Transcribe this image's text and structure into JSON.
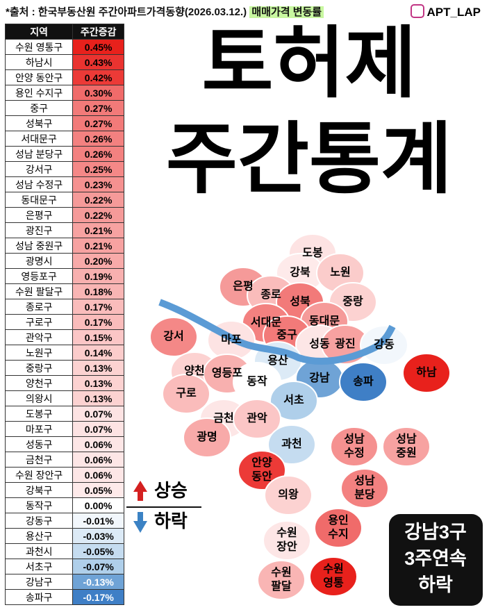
{
  "header": {
    "source": "*출처 : 한국부동산원 주간아파트가격동향(2026.03.12.)",
    "metric": "매매가격 변동률",
    "account": "APT_LAP"
  },
  "table": {
    "columns": [
      "지역",
      "주간증감"
    ],
    "rows": [
      {
        "region": "수원 영통구",
        "change": "0.45%",
        "color": "#e8211c"
      },
      {
        "region": "하남시",
        "change": "0.43%",
        "color": "#ea3330"
      },
      {
        "region": "안양 동안구",
        "change": "0.42%",
        "color": "#ec3a37"
      },
      {
        "region": "용인 수지구",
        "change": "0.30%",
        "color": "#f06b6a"
      },
      {
        "region": "중구",
        "change": "0.27%",
        "color": "#f27a79"
      },
      {
        "region": "성북구",
        "change": "0.27%",
        "color": "#f27a79"
      },
      {
        "region": "서대문구",
        "change": "0.26%",
        "color": "#f38180"
      },
      {
        "region": "성남 분당구",
        "change": "0.26%",
        "color": "#f38180"
      },
      {
        "region": "강서구",
        "change": "0.25%",
        "color": "#f48887"
      },
      {
        "region": "성남 수정구",
        "change": "0.23%",
        "color": "#f59190"
      },
      {
        "region": "동대문구",
        "change": "0.22%",
        "color": "#f59a99"
      },
      {
        "region": "은평구",
        "change": "0.22%",
        "color": "#f59a99"
      },
      {
        "region": "광진구",
        "change": "0.21%",
        "color": "#f7a2a1"
      },
      {
        "region": "성남 중원구",
        "change": "0.21%",
        "color": "#f7a2a1"
      },
      {
        "region": "광명시",
        "change": "0.20%",
        "color": "#f8aaa9"
      },
      {
        "region": "영등포구",
        "change": "0.19%",
        "color": "#f8b0af"
      },
      {
        "region": "수원 팔달구",
        "change": "0.18%",
        "color": "#f9b5b4"
      },
      {
        "region": "종로구",
        "change": "0.17%",
        "color": "#fabcbb"
      },
      {
        "region": "구로구",
        "change": "0.17%",
        "color": "#fabcbb"
      },
      {
        "region": "관악구",
        "change": "0.15%",
        "color": "#fbc6c6"
      },
      {
        "region": "노원구",
        "change": "0.14%",
        "color": "#fbcccb"
      },
      {
        "region": "중랑구",
        "change": "0.13%",
        "color": "#fcd2d1"
      },
      {
        "region": "양천구",
        "change": "0.13%",
        "color": "#fcd2d1"
      },
      {
        "region": "의왕시",
        "change": "0.13%",
        "color": "#fcd2d1"
      },
      {
        "region": "도봉구",
        "change": "0.07%",
        "color": "#fde3e3"
      },
      {
        "region": "마포구",
        "change": "0.07%",
        "color": "#fde3e3"
      },
      {
        "region": "성동구",
        "change": "0.06%",
        "color": "#fde6e6"
      },
      {
        "region": "금천구",
        "change": "0.06%",
        "color": "#fde6e6"
      },
      {
        "region": "수원 장안구",
        "change": "0.06%",
        "color": "#fde6e6"
      },
      {
        "region": "강북구",
        "change": "0.05%",
        "color": "#feeaea"
      },
      {
        "region": "동작구",
        "change": "0.00%",
        "color": "#ffffff"
      },
      {
        "region": "강동구",
        "change": "-0.01%",
        "color": "#f2f7fc"
      },
      {
        "region": "용산구",
        "change": "-0.03%",
        "color": "#dceaf6"
      },
      {
        "region": "과천시",
        "change": "-0.05%",
        "color": "#c5dcf0"
      },
      {
        "region": "서초구",
        "change": "-0.07%",
        "color": "#afcfea"
      },
      {
        "region": "강남구",
        "change": "-0.13%",
        "color": "#6fa3d6"
      },
      {
        "region": "송파구",
        "change": "-0.17%",
        "color": "#3f7fc6"
      }
    ]
  },
  "title": {
    "lines": [
      "토허제",
      "주간통계"
    ]
  },
  "legend": {
    "up": "상승",
    "down": "하락"
  },
  "callout": {
    "lines": [
      "강남3구",
      "3주연속",
      "하락"
    ]
  },
  "map": {
    "labels": [
      [
        "도봉"
      ],
      [
        "강북"
      ],
      [
        "노원"
      ],
      [
        "은평"
      ],
      [
        "종로"
      ],
      [
        "성북"
      ],
      [
        "중랑"
      ],
      [
        "서대문"
      ],
      [
        "동대문"
      ],
      [
        "강서"
      ],
      [
        "마포"
      ],
      [
        "중구"
      ],
      [
        "성동"
      ],
      [
        "광진"
      ],
      [
        "강동"
      ],
      [
        "하남"
      ],
      [
        "용산"
      ],
      [
        "양천"
      ],
      [
        "영등포"
      ],
      [
        "동작"
      ],
      [
        "강남"
      ],
      [
        "송파"
      ],
      [
        "구로"
      ],
      [
        "서초"
      ],
      [
        "금천"
      ],
      [
        "관악"
      ],
      [
        "광명"
      ],
      [
        "과천"
      ],
      [
        "성남",
        "수정"
      ],
      [
        "성남",
        "중원"
      ],
      [
        "안양",
        "동안"
      ],
      [
        "성남",
        "분당"
      ],
      [
        "의왕"
      ],
      [
        "용인",
        "수지"
      ],
      [
        "수원",
        "장안"
      ],
      [
        "수원",
        "팔달"
      ],
      [
        "수원",
        "영통"
      ]
    ]
  }
}
